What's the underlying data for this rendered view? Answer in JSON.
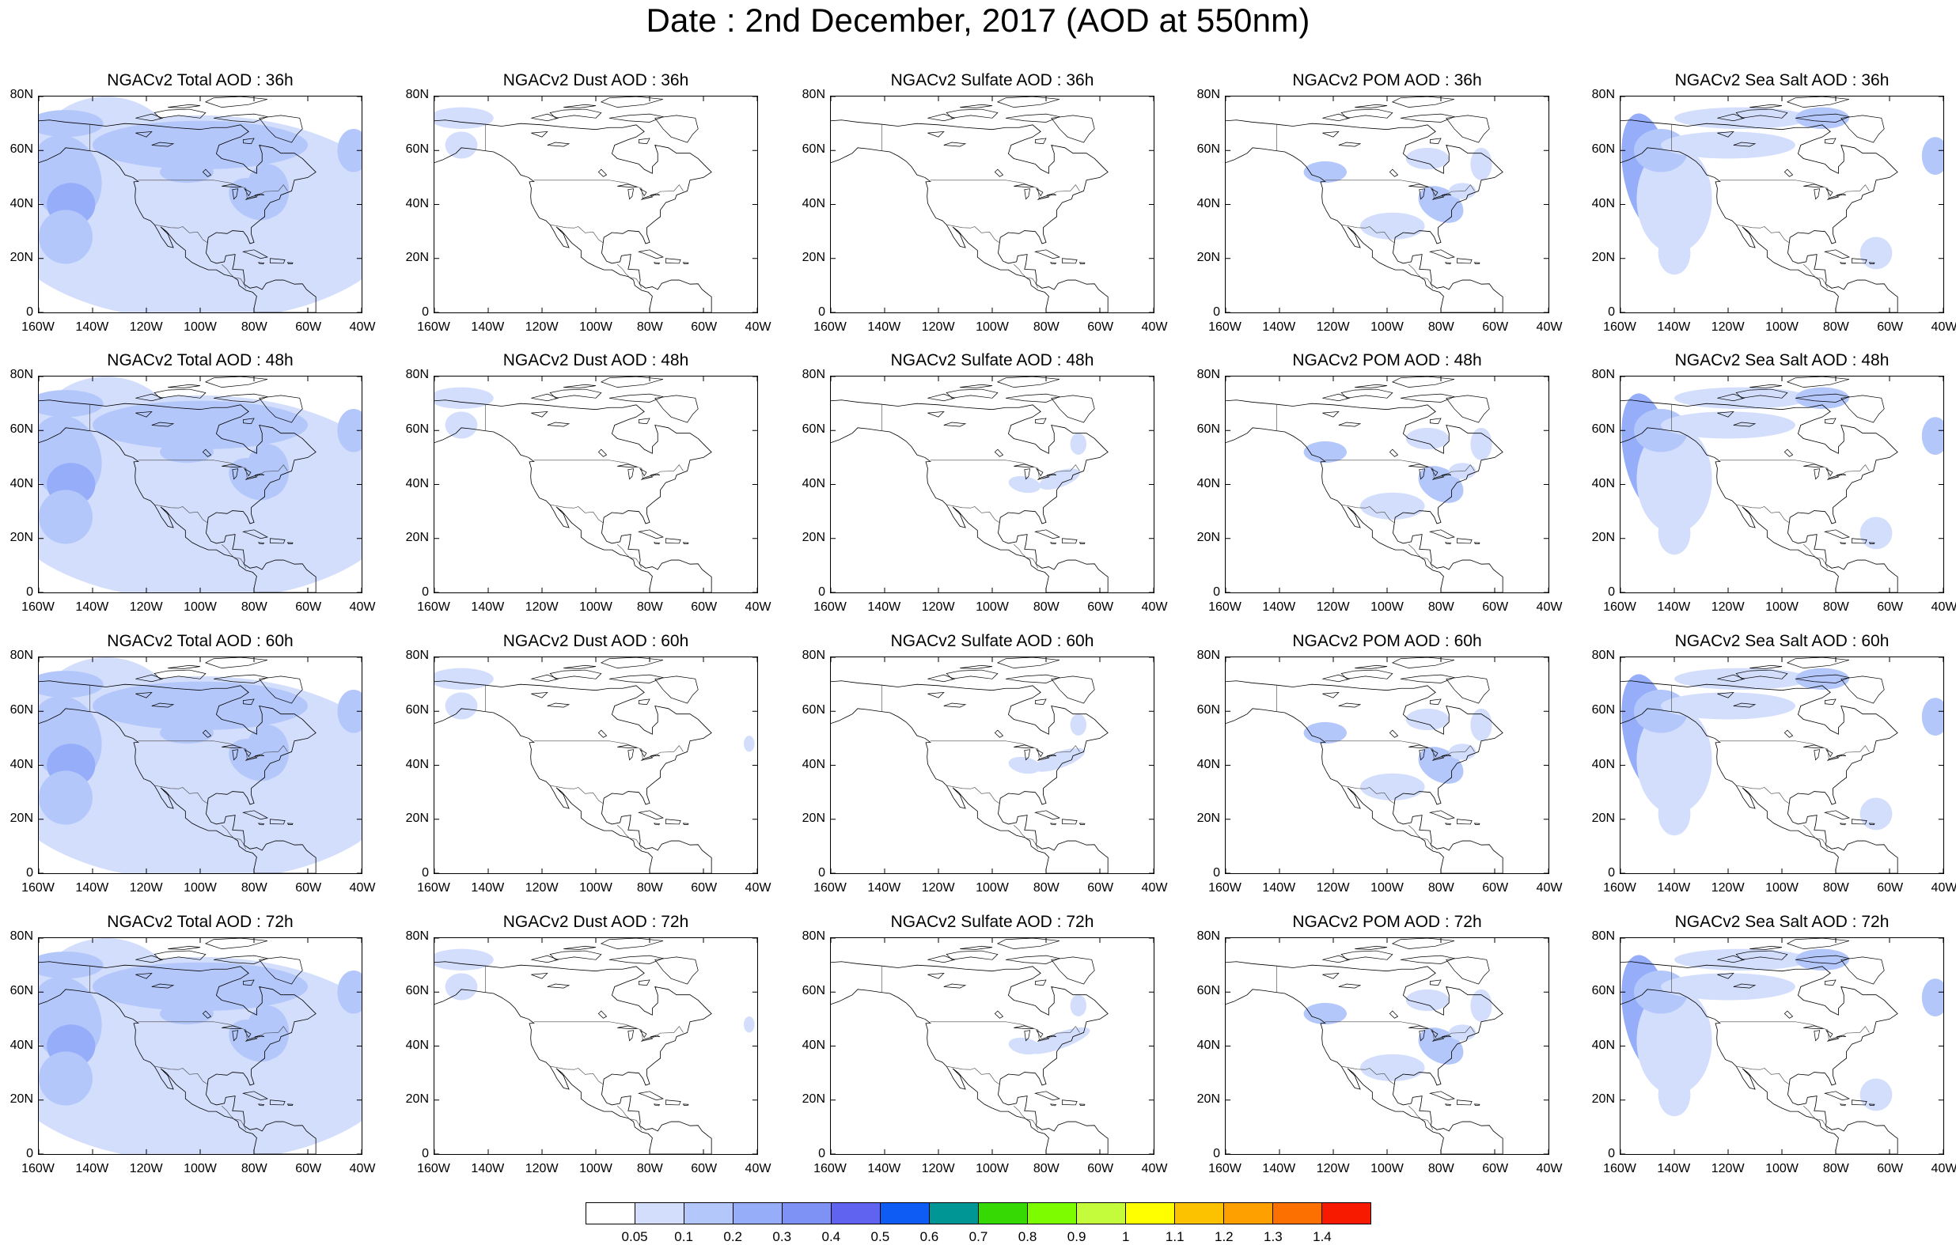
{
  "title": "Date : 2nd December, 2017 (AOD at 550nm)",
  "axes": {
    "lon_ticks": [
      "160W",
      "140W",
      "120W",
      "100W",
      "80W",
      "60W",
      "40W"
    ],
    "lat_ticks": [
      "80N",
      "60N",
      "40N",
      "20N",
      "0"
    ]
  },
  "rows": [
    {
      "hour": "36h",
      "titles": [
        "NGACv2 Total AOD : 36h",
        "NGACv2 Dust AOD : 36h",
        "NGACv2 Sulfate AOD : 36h",
        "NGACv2 POM AOD : 36h",
        "NGACv2 Sea Salt AOD : 36h"
      ]
    },
    {
      "hour": "48h",
      "titles": [
        "NGACv2 Total AOD : 48h",
        "NGACv2 Dust AOD : 48h",
        "NGACv2 Sulfate AOD : 48h",
        "NGACv2 POM AOD : 48h",
        "NGACv2 Sea Salt AOD : 48h"
      ]
    },
    {
      "hour": "60h",
      "titles": [
        "NGACv2 Total AOD : 60h",
        "NGACv2 Dust AOD : 60h",
        "NGACv2 Sulfate AOD : 60h",
        "NGACv2 POM AOD : 60h",
        "NGACv2 Sea Salt AOD : 60h"
      ]
    },
    {
      "hour": "72h",
      "titles": [
        "NGACv2 Total AOD : 72h",
        "NGACv2 Dust AOD : 72h",
        "NGACv2 Sulfate AOD : 72h",
        "NGACv2 POM AOD : 72h",
        "NGACv2 Sea Salt  AOD : 72h"
      ]
    }
  ],
  "colorbar": {
    "labels": [
      "0.05",
      "0.1",
      "0.2",
      "0.3",
      "0.4",
      "0.5",
      "0.6",
      "0.7",
      "0.8",
      "0.9",
      "1",
      "1.1",
      "1.2",
      "1.3",
      "1.4"
    ],
    "colors": [
      "#ffffff",
      "#d3defc",
      "#b4c7fb",
      "#96adf9",
      "#7e92f6",
      "#5f63f0",
      "#0f5cf5",
      "#009696",
      "#36d904",
      "#7dfc00",
      "#c4fc3c",
      "#ffff00",
      "#fcc200",
      "#fda000",
      "#fb7000",
      "#f81a00"
    ]
  },
  "palette": {
    "light": "#d3defc",
    "mid": "#b4c7fb",
    "strong": "#96adf9",
    "deep": "#7e92f6"
  }
}
